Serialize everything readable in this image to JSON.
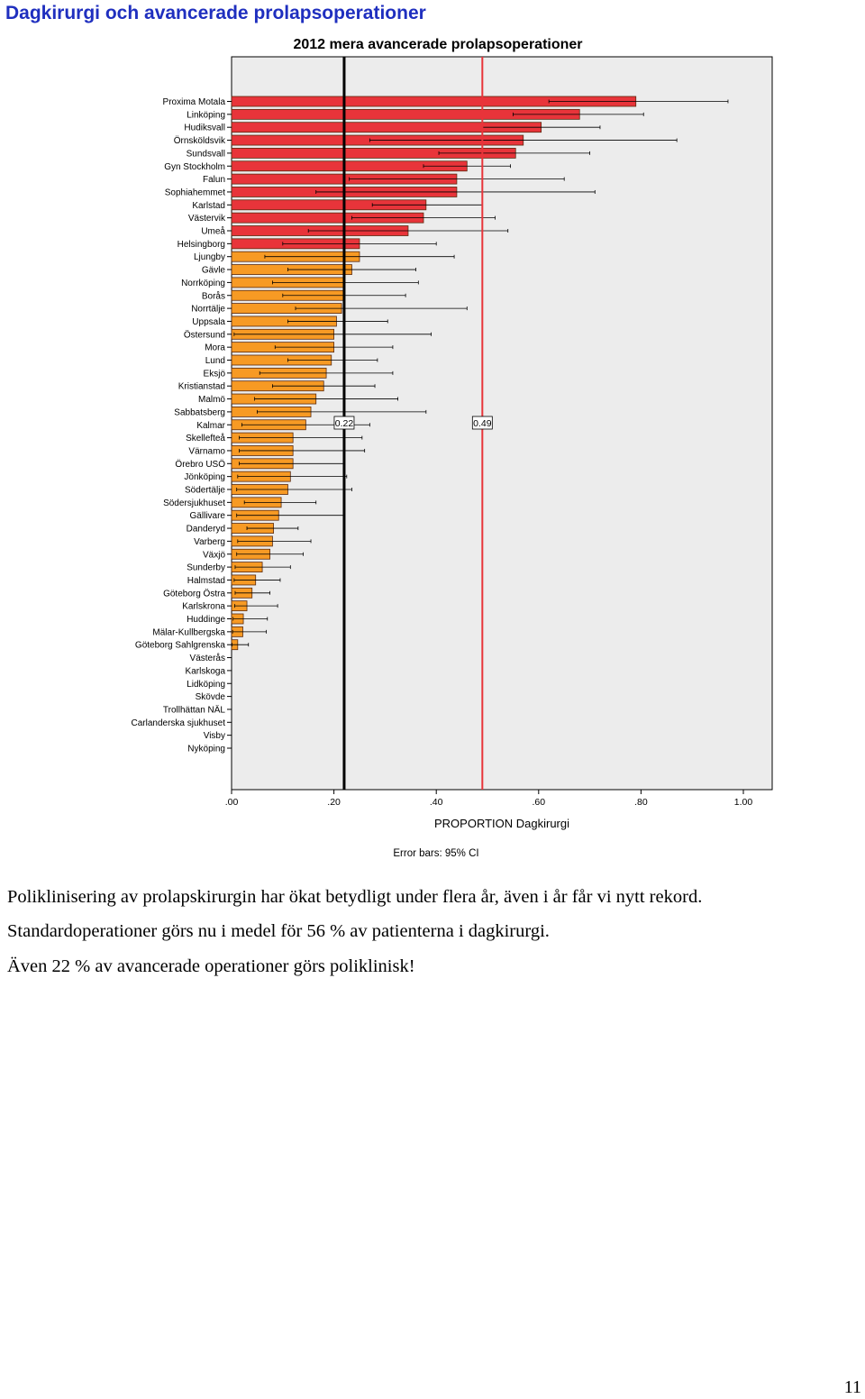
{
  "heading": "Dagkirurgi och avancerade prolapsoperationer",
  "chart_data": {
    "type": "bar",
    "orientation": "horizontal",
    "title": "2012   mera avancerade prolapsoperationer",
    "xlabel": "PROPORTION Dagkirurgi",
    "ylabel": "",
    "xlim": [
      0,
      1.05
    ],
    "xticks": [
      0,
      0.2,
      0.4,
      0.6,
      0.8,
      1.0
    ],
    "xtick_labels": [
      ".00",
      ".20",
      ".40",
      ".60",
      ".80",
      "1.00"
    ],
    "footnote": "Error bars: 95% CI",
    "grid": false,
    "colors": {
      "high": "#e8343a",
      "low": "#f79a24",
      "reference_line": "#e8343a",
      "mean_line": "#000000",
      "background": "#ececec"
    },
    "reference_lines": [
      {
        "value": 0.22,
        "label": "0.22",
        "color": "#000000"
      },
      {
        "value": 0.49,
        "label": "0.49",
        "color": "#e8343a"
      }
    ],
    "categories": [
      "Proxima Motala",
      "Linköping",
      "Hudiksvall",
      "Örnsköldsvik",
      "Sundsvall",
      "Gyn Stockholm",
      "Falun",
      "Sophiahemmet",
      "Karlstad",
      "Västervik",
      "Umeå",
      "Helsingborg",
      "Ljungby",
      "Gävle",
      "Norrköping",
      "Borås",
      "Norrtälje",
      "Uppsala",
      "Östersund",
      "Mora",
      "Lund",
      "Eksjö",
      "Kristianstad",
      "Malmö",
      "Sabbatsberg",
      "Kalmar",
      "Skellefteå",
      "Värnamo",
      "Örebro USÖ",
      "Jönköping",
      "Södertälje",
      "Södersjukhuset",
      "Gällivare",
      "Danderyd",
      "Varberg",
      "Växjö",
      "Sunderby",
      "Halmstad",
      "Göteborg Östra",
      "Karlskrona",
      "Huddinge",
      "Mälar-Kullbergska",
      "Göteborg Sahlgrenska",
      "Västerås",
      "Karlskoga",
      "Lidköping",
      "Skövde",
      "Trollhättan NÄL",
      "Carlanderska sjukhuset",
      "Visby",
      "Nyköping"
    ],
    "values": [
      0.79,
      0.68,
      0.605,
      0.57,
      0.555,
      0.46,
      0.44,
      0.44,
      0.38,
      0.375,
      0.345,
      0.25,
      0.25,
      0.235,
      0.22,
      0.22,
      0.215,
      0.205,
      0.2,
      0.2,
      0.195,
      0.185,
      0.18,
      0.165,
      0.155,
      0.145,
      0.12,
      0.12,
      0.12,
      0.115,
      0.11,
      0.097,
      0.092,
      0.082,
      0.08,
      0.075,
      0.06,
      0.047,
      0.04,
      0.03,
      0.023,
      0.022,
      0.012,
      0,
      0,
      0,
      0,
      0,
      0,
      0,
      0
    ],
    "ci_low": [
      0.62,
      0.55,
      0.49,
      0.27,
      0.405,
      0.375,
      0.23,
      0.165,
      0.275,
      0.235,
      0.15,
      0.1,
      0.065,
      0.11,
      0.08,
      0.1,
      0.125,
      0.11,
      0.005,
      0.085,
      0.11,
      0.055,
      0.08,
      0.045,
      0.05,
      0.02,
      0.015,
      0.015,
      0.015,
      0.012,
      0.01,
      0.025,
      0.01,
      0.03,
      0.012,
      0.01,
      0.007,
      0.005,
      0.007,
      0.006,
      0.003,
      0.002,
      0.001,
      0,
      0,
      0,
      0,
      0,
      0,
      0,
      0
    ],
    "ci_high": [
      0.97,
      0.805,
      0.72,
      0.87,
      0.7,
      0.545,
      0.65,
      0.71,
      0.49,
      0.515,
      0.54,
      0.4,
      0.435,
      0.36,
      0.365,
      0.34,
      0.46,
      0.305,
      0.39,
      0.315,
      0.285,
      0.315,
      0.28,
      0.325,
      0.38,
      0.27,
      0.255,
      0.26,
      0.22,
      0.225,
      0.235,
      0.165,
      0.22,
      0.13,
      0.155,
      0.14,
      0.115,
      0.095,
      0.075,
      0.09,
      0.07,
      0.068,
      0.033,
      0,
      0,
      0,
      0,
      0,
      0,
      0,
      0
    ],
    "color_groups": [
      "high",
      "high",
      "high",
      "high",
      "high",
      "high",
      "high",
      "high",
      "high",
      "high",
      "high",
      "high",
      "low",
      "low",
      "low",
      "low",
      "low",
      "low",
      "low",
      "low",
      "low",
      "low",
      "low",
      "low",
      "low",
      "low",
      "low",
      "low",
      "low",
      "low",
      "low",
      "low",
      "low",
      "low",
      "low",
      "low",
      "low",
      "low",
      "low",
      "low",
      "low",
      "low",
      "low",
      "low",
      "low",
      "low",
      "low",
      "low",
      "low",
      "low",
      "low"
    ]
  },
  "paragraphs": [
    "Poliklinisering av prolapskirurgin har ökat betydligt under flera år, även i år får vi nytt rekord.",
    "Standardoperationer görs nu i medel för 56 % av patienterna i dagkirurgi.",
    "Även 22 % av avancerade operationer görs poliklinisk!"
  ],
  "page_number": "11"
}
